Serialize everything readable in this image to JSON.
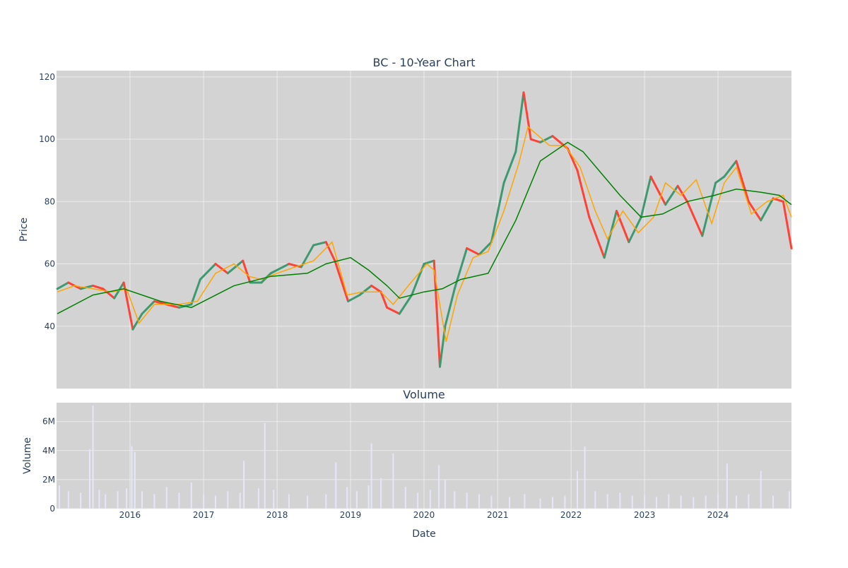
{
  "chart_data": [
    {
      "type": "candlestick",
      "title": "BC - 10-Year Chart",
      "ylabel": "Price",
      "x_range": [
        "2015-01-01",
        "2024-12-31"
      ],
      "ylim": [
        20,
        122
      ],
      "yticks": [
        40,
        60,
        80,
        100,
        120
      ],
      "grid": true,
      "background": "#d3d3d3",
      "colors": {
        "up": "#3d9970",
        "down": "#ff4136",
        "ma_short": "#ffa500",
        "ma_long": "#008000"
      },
      "price_close": {
        "dates": [
          "2015-01-05",
          "2015-03-01",
          "2015-05-01",
          "2015-07-01",
          "2015-08-20",
          "2015-10-15",
          "2015-12-01",
          "2016-01-15",
          "2016-03-01",
          "2016-05-01",
          "2016-07-01",
          "2016-09-01",
          "2016-11-01",
          "2016-12-15",
          "2017-03-01",
          "2017-05-01",
          "2017-07-15",
          "2017-08-20",
          "2017-10-15",
          "2017-12-01",
          "2018-03-01",
          "2018-05-01",
          "2018-07-01",
          "2018-09-01",
          "2018-10-15",
          "2018-12-20",
          "2019-02-15",
          "2019-04-15",
          "2019-06-01",
          "2019-07-01",
          "2019-09-01",
          "2019-11-01",
          "2020-01-01",
          "2020-02-20",
          "2020-03-20",
          "2020-04-15",
          "2020-06-01",
          "2020-08-01",
          "2020-10-01",
          "2020-12-01",
          "2021-02-01",
          "2021-04-01",
          "2021-05-10",
          "2021-06-15",
          "2021-08-01",
          "2021-10-01",
          "2021-12-15",
          "2022-02-01",
          "2022-04-01",
          "2022-06-15",
          "2022-08-15",
          "2022-10-15",
          "2022-12-15",
          "2023-02-01",
          "2023-04-15",
          "2023-06-15",
          "2023-08-01",
          "2023-10-15",
          "2023-12-20",
          "2024-02-01",
          "2024-04-01",
          "2024-06-01",
          "2024-08-01",
          "2024-10-01",
          "2024-11-20",
          "2024-12-31"
        ],
        "values": [
          52,
          54,
          52,
          53,
          52,
          49,
          54,
          39,
          44,
          48,
          47,
          46,
          47,
          55,
          60,
          57,
          61,
          54,
          54,
          57,
          60,
          59,
          66,
          67,
          61,
          48,
          50,
          53,
          51,
          46,
          44,
          50,
          60,
          61,
          27,
          40,
          52,
          65,
          63,
          67,
          86,
          96,
          115,
          100,
          99,
          101,
          97,
          90,
          75,
          62,
          77,
          67,
          75,
          88,
          79,
          85,
          80,
          69,
          86,
          88,
          93,
          80,
          74,
          81,
          80,
          65
        ]
      },
      "ma_short": {
        "dates": [
          "2015-01-05",
          "2015-04-01",
          "2015-07-01",
          "2015-10-01",
          "2015-12-15",
          "2016-02-15",
          "2016-05-01",
          "2016-09-01",
          "2016-12-01",
          "2017-03-01",
          "2017-06-01",
          "2017-08-15",
          "2017-10-15",
          "2018-01-01",
          "2018-04-01",
          "2018-07-01",
          "2018-10-01",
          "2018-12-15",
          "2019-03-01",
          "2019-06-01",
          "2019-08-01",
          "2019-10-15",
          "2020-01-15",
          "2020-02-20",
          "2020-04-20",
          "2020-06-15",
          "2020-09-01",
          "2020-11-15",
          "2021-02-01",
          "2021-04-15",
          "2021-06-01",
          "2021-09-15",
          "2021-12-01",
          "2022-02-15",
          "2022-05-01",
          "2022-07-01",
          "2022-09-15",
          "2022-12-01",
          "2023-02-15",
          "2023-04-15",
          "2023-07-01",
          "2023-09-15",
          "2023-12-01",
          "2024-02-01",
          "2024-04-01",
          "2024-06-15",
          "2024-09-01",
          "2024-11-20",
          "2024-12-31"
        ],
        "values": [
          51,
          53,
          52,
          51,
          52,
          41,
          47,
          47,
          48,
          57,
          60,
          56,
          55,
          57,
          59,
          61,
          67,
          50,
          51,
          51,
          47,
          53,
          60,
          58,
          35,
          50,
          62,
          64,
          77,
          92,
          104,
          98,
          98,
          91,
          77,
          68,
          77,
          70,
          75,
          86,
          82,
          87,
          73,
          86,
          91,
          76,
          80,
          82,
          75
        ]
      },
      "ma_long": {
        "dates": [
          "2015-01-05",
          "2015-07-01",
          "2015-12-01",
          "2016-06-01",
          "2016-11-01",
          "2017-06-01",
          "2017-12-01",
          "2018-06-01",
          "2018-09-01",
          "2019-01-01",
          "2019-04-01",
          "2019-07-01",
          "2019-09-01",
          "2020-01-01",
          "2020-04-01",
          "2020-07-01",
          "2020-11-15",
          "2021-04-01",
          "2021-08-01",
          "2021-12-15",
          "2022-03-01",
          "2022-06-01",
          "2022-09-01",
          "2022-12-15",
          "2023-04-01",
          "2023-08-01",
          "2023-12-15",
          "2024-04-01",
          "2024-08-01",
          "2024-11-01",
          "2024-12-31"
        ],
        "values": [
          44,
          50,
          52,
          48,
          46,
          53,
          56,
          57,
          60,
          62,
          58,
          53,
          49,
          51,
          52,
          55,
          57,
          74,
          93,
          99,
          96,
          89,
          82,
          75,
          76,
          80,
          82,
          84,
          83,
          82,
          79
        ]
      }
    },
    {
      "type": "bar",
      "title": "Volume",
      "xlabel": "Date",
      "ylabel": "Volume",
      "ylim": [
        0,
        7300000
      ],
      "yticks": [
        0,
        2000000,
        4000000,
        6000000
      ],
      "ytick_labels": [
        "0",
        "2M",
        "4M",
        "6M"
      ],
      "xticks": [
        "2016-01-01",
        "2017-01-01",
        "2018-01-01",
        "2019-01-01",
        "2020-01-01",
        "2021-01-01",
        "2022-01-01",
        "2023-01-01",
        "2024-01-01"
      ],
      "xtick_labels": [
        "2016",
        "2017",
        "2018",
        "2019",
        "2020",
        "2021",
        "2022",
        "2023",
        "2024"
      ],
      "bar_color": "#e6e6fa",
      "background": "#d3d3d3",
      "grid": true,
      "dates": [
        "2015-01-15",
        "2015-03-01",
        "2015-05-01",
        "2015-06-15",
        "2015-07-01",
        "2015-08-01",
        "2015-09-01",
        "2015-11-01",
        "2015-12-15",
        "2016-01-10",
        "2016-01-25",
        "2016-03-01",
        "2016-05-01",
        "2016-07-01",
        "2016-09-01",
        "2016-11-01",
        "2017-01-01",
        "2017-03-01",
        "2017-05-01",
        "2017-07-01",
        "2017-07-20",
        "2017-10-01",
        "2017-11-01",
        "2017-12-15",
        "2018-03-01",
        "2018-06-01",
        "2018-09-01",
        "2018-10-20",
        "2018-12-15",
        "2019-02-01",
        "2019-04-01",
        "2019-04-15",
        "2019-06-01",
        "2019-08-01",
        "2019-10-01",
        "2019-12-01",
        "2020-02-01",
        "2020-03-15",
        "2020-04-15",
        "2020-06-01",
        "2020-08-01",
        "2020-10-01",
        "2020-12-01",
        "2021-03-01",
        "2021-05-15",
        "2021-08-01",
        "2021-10-01",
        "2021-12-01",
        "2022-02-01",
        "2022-03-10",
        "2022-05-01",
        "2022-07-01",
        "2022-09-01",
        "2022-11-01",
        "2023-01-01",
        "2023-03-01",
        "2023-05-01",
        "2023-07-01",
        "2023-09-01",
        "2023-11-01",
        "2024-01-01",
        "2024-02-15",
        "2024-04-01",
        "2024-06-01",
        "2024-08-01",
        "2024-10-01",
        "2024-12-20"
      ],
      "values": [
        1600000,
        1200000,
        1100000,
        4100000,
        7100000,
        1300000,
        1000000,
        1200000,
        1400000,
        4300000,
        3900000,
        1200000,
        1000000,
        1500000,
        1100000,
        1800000,
        1000000,
        900000,
        1200000,
        1100000,
        3300000,
        1400000,
        5900000,
        1300000,
        1000000,
        900000,
        1000000,
        3200000,
        1500000,
        1200000,
        1600000,
        4500000,
        2100000,
        3800000,
        1500000,
        1100000,
        1300000,
        3000000,
        2000000,
        1200000,
        1100000,
        1000000,
        900000,
        800000,
        1000000,
        700000,
        800000,
        900000,
        2600000,
        4300000,
        1200000,
        1000000,
        1100000,
        900000,
        900000,
        800000,
        1000000,
        900000,
        800000,
        900000,
        1100000,
        3100000,
        900000,
        1000000,
        2600000,
        900000,
        1200000
      ]
    }
  ]
}
